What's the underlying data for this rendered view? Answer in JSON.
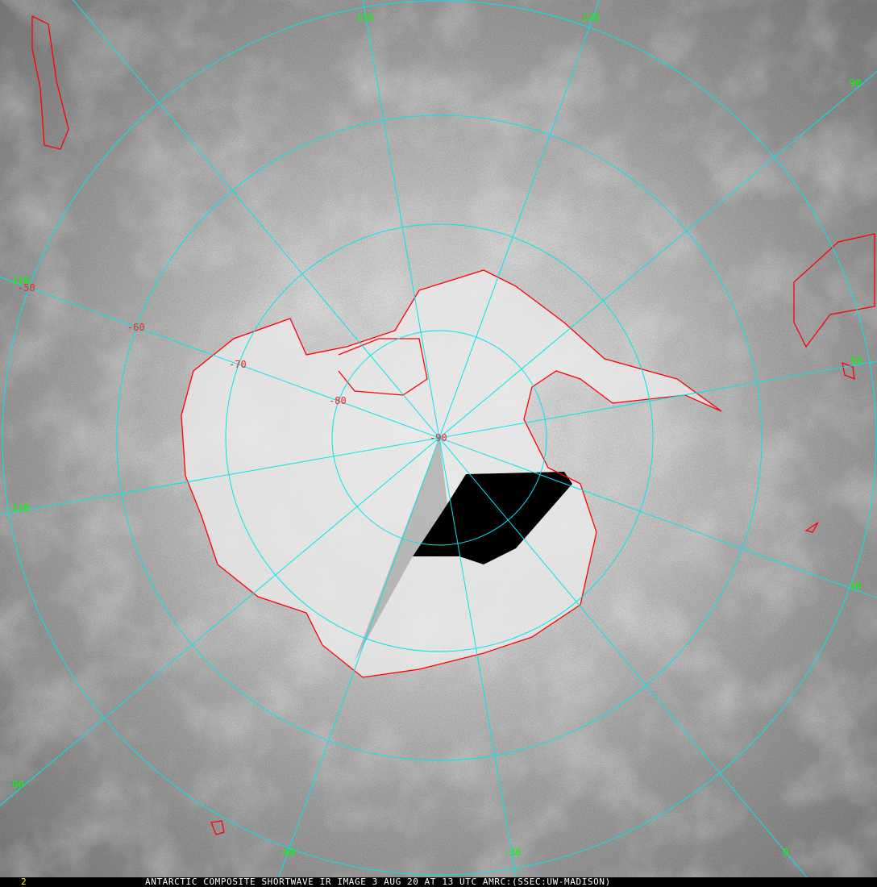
{
  "caption": {
    "frame_number": "2",
    "title": "ANTARCTIC COMPOSITE SHORTWAVE IR IMAGE 3 AUG 20 AT 13 UTC AMRC:(SSEC:UW-MADISON)"
  },
  "map": {
    "projection": "south polar stereographic",
    "pole_label": "-90",
    "latitude_labels": [
      "-50",
      "-60",
      "-70",
      "-80"
    ],
    "longitude_labels": [
      "150",
      "120",
      "90",
      "60",
      "30",
      "0",
      "-30",
      "-60",
      "-90",
      "-120",
      "-150"
    ],
    "colors": {
      "graticule": "#00e5ee",
      "coastline": "#ff0000",
      "longitude_labels": "#00ff00",
      "latitude_labels": "#ff2020",
      "frame_number": "#ffff00"
    }
  }
}
